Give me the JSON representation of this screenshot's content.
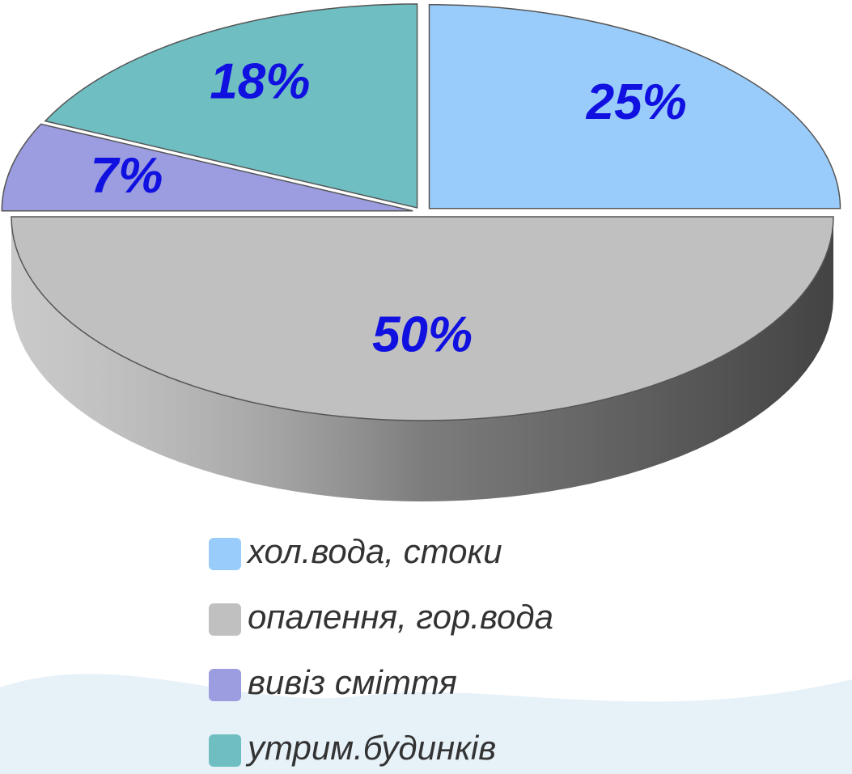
{
  "chart_data": {
    "type": "pie",
    "categories": [
      "хол.вода, стоки",
      "опалення, гор.вода",
      "вивіз сміття",
      "утрим.будинків"
    ],
    "values": [
      25,
      50,
      7,
      18
    ],
    "value_labels": [
      "25%",
      "50%",
      "7%",
      "18%"
    ],
    "colors": [
      "#99ccfa",
      "#c0c0c0",
      "#9c9ce0",
      "#6fbfc2"
    ],
    "label_color": "#1010e0",
    "legend": "bottom"
  }
}
